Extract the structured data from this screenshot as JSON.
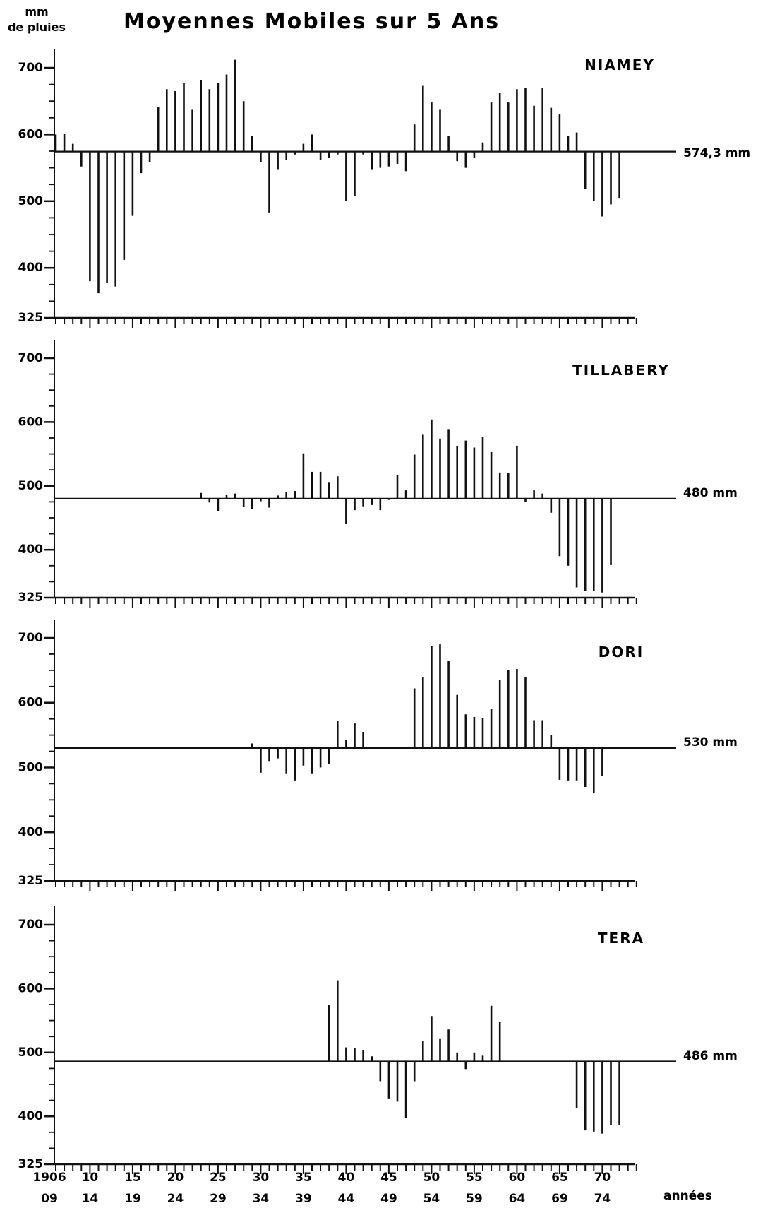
{
  "chart_data": {
    "type": "bar",
    "title": "Moyennes Mobiles sur 5 Ans",
    "ylabel": [
      "mm",
      "de pluies"
    ],
    "xlabel": "années",
    "ylim": [
      325,
      700
    ],
    "yticks": [
      325,
      400,
      500,
      600,
      700
    ],
    "x_range": [
      1906,
      1974
    ],
    "x_tick_labels_top": [
      "1906",
      "10",
      "15",
      "20",
      "25",
      "30",
      "35",
      "40",
      "45",
      "50",
      "55",
      "60",
      "65",
      "70"
    ],
    "x_tick_labels_bottom": [
      "09",
      "14",
      "19",
      "24",
      "29",
      "34",
      "39",
      "44",
      "49",
      "54",
      "59",
      "64",
      "69",
      "74"
    ],
    "panels": [
      {
        "station": "NIAMEY",
        "mean_label": "574,3 mm",
        "mean": 574.3,
        "start_year": 1906,
        "values": [
          600,
          601,
          586,
          552,
          380,
          362,
          378,
          372,
          412,
          478,
          542,
          558,
          641,
          668,
          665,
          677,
          637,
          682,
          668,
          677,
          690,
          712,
          650,
          598,
          558,
          483,
          548,
          562,
          570,
          586,
          600,
          562,
          565,
          570,
          500,
          508,
          570,
          548,
          550,
          552,
          556,
          545,
          615,
          673,
          648,
          637,
          598,
          560,
          550,
          565,
          588,
          648,
          662,
          648,
          668,
          670,
          643,
          670,
          640,
          630,
          598,
          603,
          518,
          500,
          477,
          495,
          505
        ]
      },
      {
        "station": "TILLABERY",
        "mean_label": "480 mm",
        "mean": 480,
        "start_year": 1906,
        "values": [
          null,
          null,
          null,
          null,
          null,
          null,
          null,
          null,
          null,
          null,
          null,
          null,
          null,
          null,
          null,
          null,
          null,
          489,
          474,
          461,
          486,
          488,
          467,
          464,
          476,
          466,
          485,
          490,
          492,
          551,
          522,
          522,
          505,
          515,
          440,
          462,
          468,
          470,
          462,
          478,
          517,
          493,
          549,
          580,
          604,
          574,
          589,
          563,
          571,
          560,
          577,
          553,
          521,
          520,
          563,
          475,
          493,
          488,
          458,
          390,
          375,
          341,
          335,
          336,
          333,
          376
        ]
      },
      {
        "station": "DORI",
        "mean_label": "530 mm",
        "mean": 530,
        "start_year": 1906,
        "values": [
          null,
          null,
          null,
          null,
          null,
          null,
          null,
          null,
          null,
          null,
          null,
          null,
          null,
          null,
          null,
          null,
          null,
          null,
          null,
          null,
          null,
          null,
          null,
          537,
          492,
          510,
          514,
          491,
          480,
          503,
          491,
          500,
          505,
          572,
          543,
          568,
          555,
          null,
          null,
          null,
          null,
          null,
          622,
          640,
          688,
          690,
          665,
          612,
          582,
          578,
          576,
          590,
          635,
          650,
          652,
          639,
          573,
          573,
          550,
          481,
          480,
          480,
          470,
          460,
          487
        ]
      },
      {
        "station": "TERA",
        "mean_label": "486 mm",
        "mean": 486,
        "start_year": 1906,
        "values": [
          null,
          null,
          null,
          null,
          null,
          null,
          null,
          null,
          null,
          null,
          null,
          null,
          null,
          null,
          null,
          null,
          null,
          null,
          null,
          null,
          null,
          null,
          null,
          null,
          null,
          null,
          null,
          null,
          null,
          null,
          null,
          null,
          574,
          613,
          508,
          507,
          504,
          494,
          455,
          428,
          423,
          397,
          455,
          518,
          557,
          521,
          536,
          500,
          474,
          500,
          495,
          573,
          548,
          null,
          null,
          null,
          null,
          null,
          null,
          null,
          null,
          413,
          378,
          376,
          373,
          386,
          386
        ]
      }
    ]
  }
}
